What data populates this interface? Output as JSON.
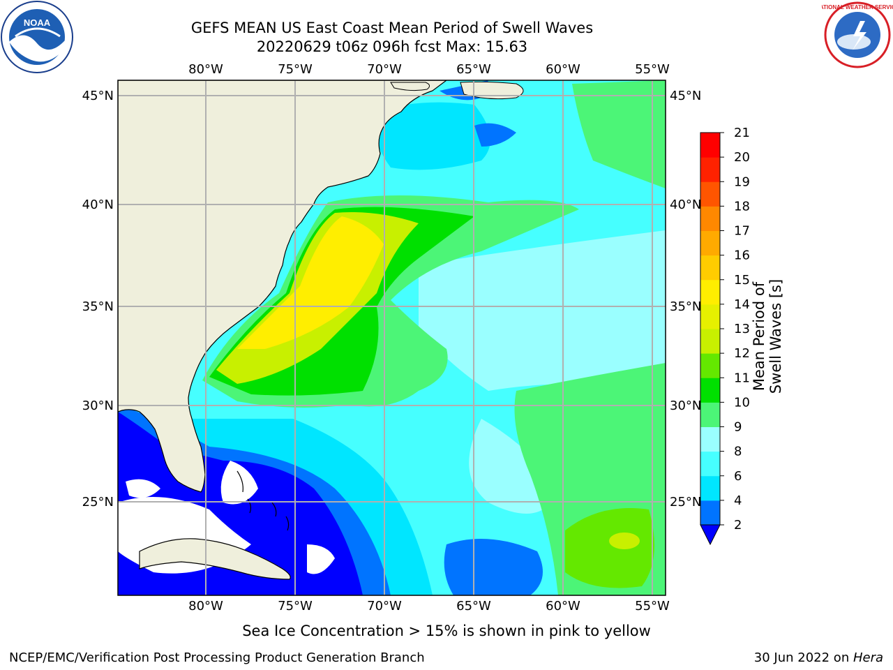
{
  "header": {
    "title_line1": "GEFS MEAN US East Coast Mean Period of Swell Waves",
    "title_line2": "20220629 t06z 096h fcst   Max: 15.63"
  },
  "logos": {
    "left": "NOAA",
    "right": "NATIONAL WEATHER SERVICE"
  },
  "map": {
    "lon_labels": [
      "80°W",
      "75°W",
      "70°W",
      "65°W",
      "60°W",
      "55°W"
    ],
    "lat_labels": [
      "45°N",
      "40°N",
      "35°N",
      "30°N",
      "25°N"
    ],
    "land_color": "#efefdc",
    "grid_color": "#b0b0b0"
  },
  "colorbar": {
    "label": "Mean Period of Swell Waves [s]",
    "ticks": [
      "2",
      "4",
      "6",
      "8",
      "9",
      "10",
      "11",
      "12",
      "13",
      "14",
      "15",
      "16",
      "17",
      "18",
      "19",
      "20",
      "21"
    ],
    "colors": [
      "#0000ff",
      "#0074ff",
      "#00e6ff",
      "#46ffff",
      "#9affff",
      "#4cf577",
      "#00e000",
      "#64e800",
      "#c8f000",
      "#e6f000",
      "#ffee00",
      "#ffcc00",
      "#ffaa00",
      "#ff8800",
      "#ff5500",
      "#ff2200",
      "#ff0000"
    ]
  },
  "footer": {
    "note": "Sea Ice Concentration > 15% is shown in pink to yellow",
    "left": "NCEP/EMC/Verification Post Processing Product Generation Branch",
    "date": "30 Jun 2022 on ",
    "machine": "Hera"
  }
}
